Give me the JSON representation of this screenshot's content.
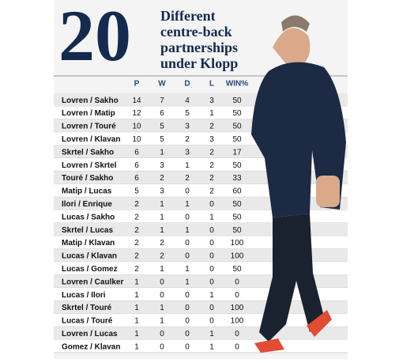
{
  "header": {
    "number": "20",
    "title_lines": [
      "Different",
      "centre-back",
      "partnerships",
      "under Klopp"
    ]
  },
  "table": {
    "columns": [
      "",
      "P",
      "W",
      "D",
      "L",
      "WIN%"
    ],
    "rows": [
      [
        "Lovren / Sakho",
        14,
        7,
        4,
        3,
        50
      ],
      [
        "Lovren / Matip",
        12,
        6,
        5,
        1,
        50
      ],
      [
        "Lovren / Touré",
        10,
        5,
        3,
        2,
        50
      ],
      [
        "Lovren / Klavan",
        10,
        5,
        2,
        3,
        50
      ],
      [
        "Skrtel / Sakho",
        6,
        1,
        3,
        2,
        17
      ],
      [
        "Lovren / Skrtel",
        6,
        3,
        1,
        2,
        50
      ],
      [
        "Touré / Sakho",
        6,
        2,
        2,
        2,
        33
      ],
      [
        "Matip / Lucas",
        5,
        3,
        0,
        2,
        60
      ],
      [
        "Ilori / Enrique",
        2,
        1,
        1,
        0,
        50
      ],
      [
        "Lucas / Sakho",
        2,
        1,
        0,
        1,
        50
      ],
      [
        "Skrtel / Lucas",
        2,
        1,
        1,
        0,
        50
      ],
      [
        "Matip / Klavan",
        2,
        2,
        0,
        0,
        100
      ],
      [
        "Lucas / Klavan",
        2,
        2,
        0,
        0,
        100
      ],
      [
        "Lucas / Gomez",
        2,
        1,
        1,
        0,
        50
      ],
      [
        "Lovren / Caulker",
        1,
        0,
        1,
        0,
        0
      ],
      [
        "Lucas / Ilori",
        1,
        0,
        0,
        1,
        0
      ],
      [
        "Skrtel / Touré",
        1,
        1,
        0,
        0,
        100
      ],
      [
        "Lucas / Touré",
        1,
        1,
        0,
        0,
        100
      ],
      [
        "Lovren / Lucas",
        1,
        0,
        0,
        1,
        0
      ],
      [
        "Gomez / Klavan",
        1,
        0,
        0,
        1,
        0
      ]
    ]
  }
}
